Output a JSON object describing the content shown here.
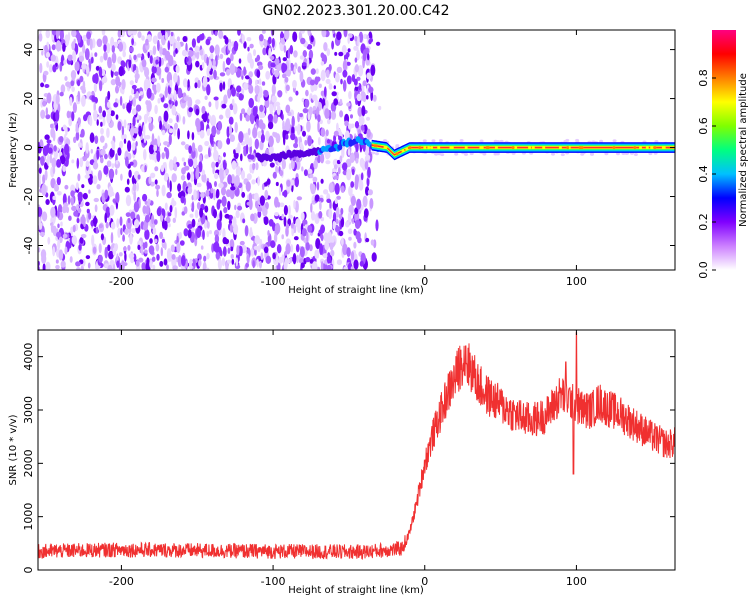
{
  "title": "GN02.2023.301.20.00.C42",
  "colors": {
    "snr_line": "#f03030",
    "colormap": [
      "#ffffff",
      "#cc80ff",
      "#8000ff",
      "#0000ff",
      "#00c0ff",
      "#00ff80",
      "#80ff00",
      "#ffff00",
      "#ff8000",
      "#ff0000",
      "#ff0080"
    ]
  },
  "chart_data": [
    {
      "type": "heatmap",
      "name": "spectrogram",
      "xlabel": "Height of straight line (km)",
      "ylabel": "Frequency (Hz)",
      "xlim": [
        -255,
        165
      ],
      "ylim": [
        -50,
        48
      ],
      "xticks": [
        -200,
        -100,
        0,
        100
      ],
      "yticks": [
        -40,
        -20,
        0,
        20,
        40
      ],
      "grid": false,
      "noise_region_x": [
        -255,
        -35
      ],
      "signal_band": {
        "x": [
          -100,
          -80,
          -60,
          -45,
          -35,
          -25,
          -20,
          -10,
          0,
          165
        ],
        "freq": [
          -4,
          -2,
          0,
          3,
          1,
          0,
          -3,
          0,
          0,
          0
        ]
      },
      "colorbar": {
        "label": "Normalized spectral amplitude",
        "range": [
          0.0,
          1.0
        ],
        "ticks": [
          0.0,
          0.2,
          0.4,
          0.6,
          0.8
        ]
      }
    },
    {
      "type": "line",
      "name": "snr",
      "xlabel": "Height of straight line (km)",
      "ylabel": "SNR (10 * v/v)",
      "xlim": [
        -255,
        165
      ],
      "ylim": [
        0,
        4500
      ],
      "xticks": [
        -200,
        -100,
        0,
        100
      ],
      "yticks": [
        0,
        1000,
        2000,
        3000,
        4000
      ],
      "grid": false,
      "envelope": {
        "x": [
          -255,
          -200,
          -100,
          -40,
          -15,
          -10,
          -5,
          0,
          5,
          10,
          15,
          20,
          25,
          30,
          35,
          40,
          50,
          60,
          70,
          80,
          85,
          90,
          95,
          100,
          105,
          110,
          115,
          120,
          130,
          140,
          150,
          160,
          165
        ],
        "y": [
          350,
          380,
          350,
          340,
          400,
          700,
          1300,
          2000,
          2500,
          2900,
          3300,
          3600,
          3950,
          3800,
          3500,
          3300,
          3100,
          2900,
          2800,
          2900,
          3100,
          3300,
          3200,
          3100,
          3000,
          3000,
          3150,
          3050,
          2900,
          2700,
          2500,
          2350,
          2400
        ]
      },
      "peaks": [
        {
          "x": 27,
          "y": 4200
        },
        {
          "x": 93,
          "y": 3900
        },
        {
          "x": 100,
          "y": 4450
        },
        {
          "x": 98,
          "y": 1800
        }
      ]
    }
  ]
}
